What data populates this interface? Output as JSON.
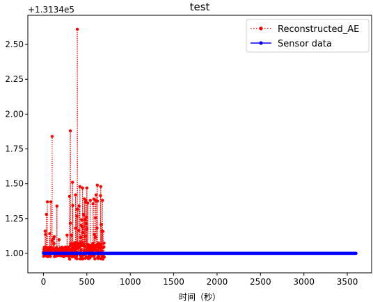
{
  "chart_data": {
    "type": "line",
    "title": "test",
    "xlabel": "时间（秒）",
    "ylabel": "",
    "y_offset_label": "+1.3134e5",
    "xlim": [
      -180,
      3780
    ],
    "ylim": [
      0.86,
      2.71
    ],
    "x_ticks": [
      0,
      500,
      1000,
      1500,
      2000,
      2500,
      3000,
      3500
    ],
    "x_tick_labels": [
      "0",
      "500",
      "1000",
      "1500",
      "2000",
      "2500",
      "3000",
      "3500"
    ],
    "y_ticks": [
      1.0,
      1.25,
      1.5,
      1.75,
      2.0,
      2.25,
      2.5
    ],
    "y_tick_labels": [
      "1.00",
      "1.25",
      "1.50",
      "1.75",
      "2.00",
      "2.25",
      "2.50"
    ],
    "legend_position": "top-right",
    "series": [
      {
        "name": "Reconstructed_AE",
        "color": "#ff0000",
        "line_style": "dotted",
        "marker": "circle",
        "x_range": [
          0,
          700
        ],
        "base_value": 1.0,
        "notable_peaks": [
          {
            "x": 20,
            "y": 1.16
          },
          {
            "x": 35,
            "y": 1.28
          },
          {
            "x": 45,
            "y": 1.37
          },
          {
            "x": 85,
            "y": 1.37
          },
          {
            "x": 100,
            "y": 1.84
          },
          {
            "x": 125,
            "y": 1.12
          },
          {
            "x": 155,
            "y": 1.34
          },
          {
            "x": 310,
            "y": 1.88
          },
          {
            "x": 335,
            "y": 1.51
          },
          {
            "x": 370,
            "y": 1.42
          },
          {
            "x": 390,
            "y": 2.61
          },
          {
            "x": 420,
            "y": 1.48
          },
          {
            "x": 450,
            "y": 1.47
          },
          {
            "x": 500,
            "y": 1.47
          },
          {
            "x": 540,
            "y": 1.38
          },
          {
            "x": 580,
            "y": 1.39
          },
          {
            "x": 620,
            "y": 1.49
          },
          {
            "x": 660,
            "y": 1.48
          },
          {
            "x": 680,
            "y": 1.38
          }
        ],
        "min_value": 0.95
      },
      {
        "name": "Sensor data",
        "color": "#0000ff",
        "line_style": "solid",
        "marker": "circle",
        "x_range": [
          0,
          3600
        ],
        "value": 1.0
      }
    ]
  }
}
